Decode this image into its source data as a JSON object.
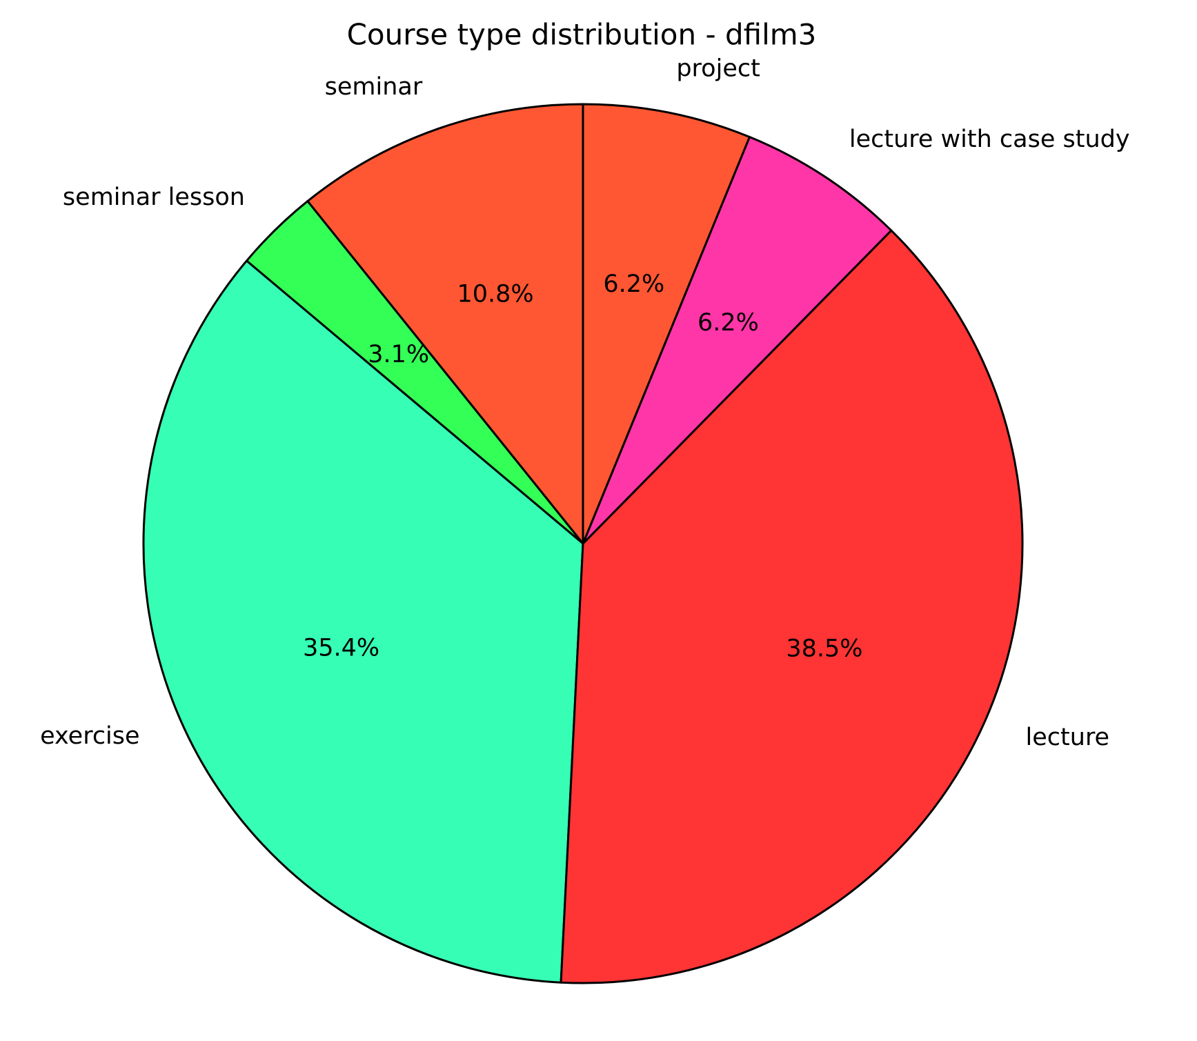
{
  "chart_data": {
    "type": "pie",
    "title": "Course type distribution - dfilm3",
    "categories": [
      "seminar",
      "seminar lesson",
      "exercise",
      "lecture",
      "lecture with case study",
      "project"
    ],
    "values": [
      10.8,
      3.1,
      35.4,
      38.5,
      6.2,
      6.2
    ],
    "value_labels": [
      "10.8%",
      "3.1%",
      "35.4%",
      "38.5%",
      "6.2%",
      "6.2%"
    ],
    "colors": [
      "#ff5733",
      "#33ff57",
      "#36ffb5",
      "#ff3434",
      "#ff36a8",
      "#ff5733"
    ],
    "start_angle": 90
  }
}
